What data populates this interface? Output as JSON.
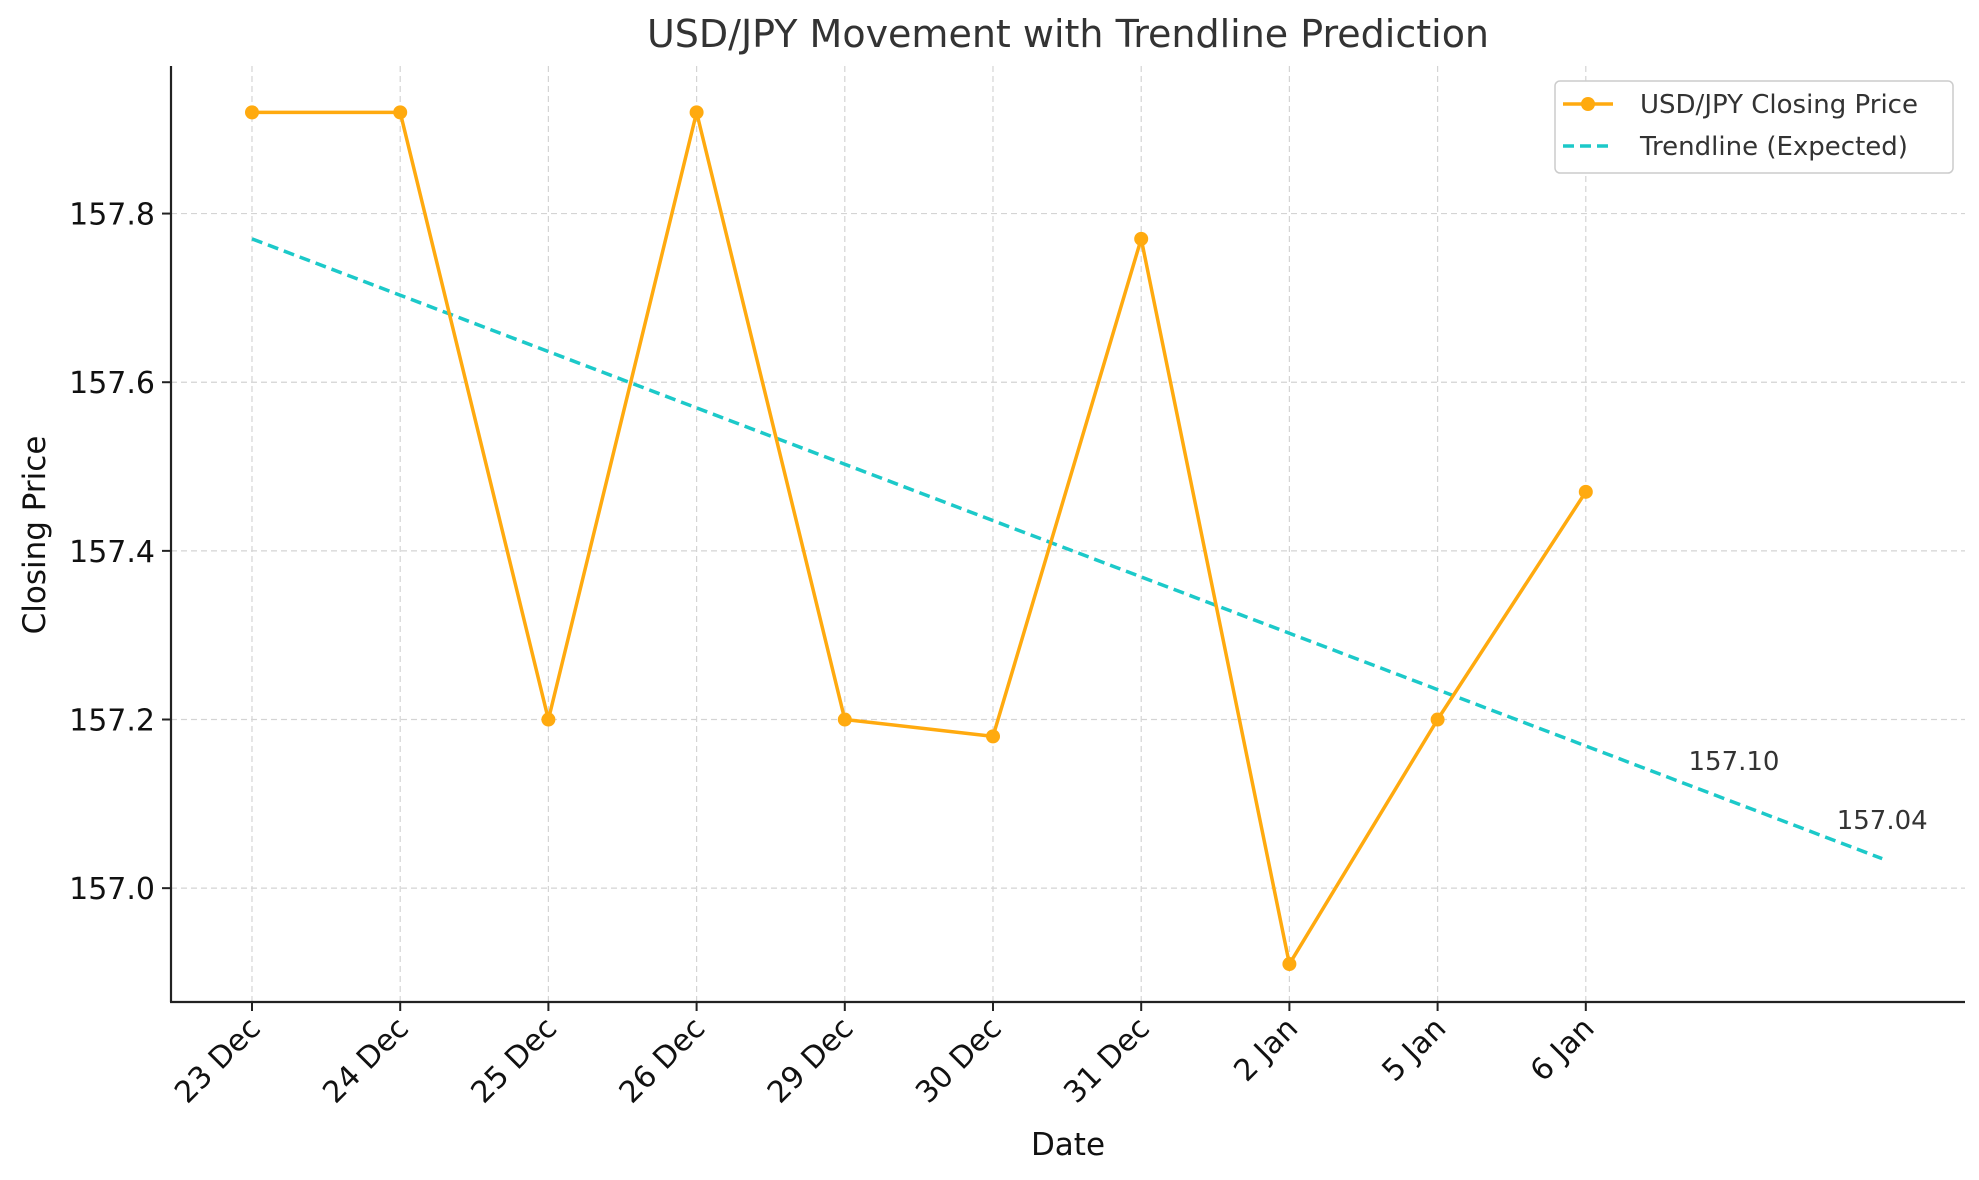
{
  "chart_data": {
    "type": "line",
    "title": "USD/JPY Movement with Trendline Prediction",
    "xlabel": "Date",
    "ylabel": "Closing Price",
    "categories": [
      "23 Dec",
      "24 Dec",
      "25 Dec",
      "26 Dec",
      "29 Dec",
      "30 Dec",
      "31 Dec",
      "2 Jan",
      "5 Jan",
      "6 Jan"
    ],
    "ylim": [
      156.865,
      157.975
    ],
    "yticks": [
      "157.0",
      "157.2",
      "157.4",
      "157.6",
      "157.8"
    ],
    "grid": true,
    "legend_position": "top-right",
    "series": [
      {
        "name": "USD/JPY Closing Price",
        "color": "#FFAA0F",
        "style": "solid-with-markers",
        "values": [
          157.92,
          157.92,
          157.2,
          157.92,
          157.2,
          157.18,
          157.77,
          156.91,
          157.2,
          157.47
        ]
      },
      {
        "name": "Trendline (Expected)",
        "color": "#1CC9C9",
        "style": "dashed",
        "start": 157.77,
        "end": 157.035
      }
    ],
    "annotations": [
      {
        "text": "157.10",
        "y": 157.14
      },
      {
        "text": "157.04",
        "y": 157.07
      }
    ]
  }
}
